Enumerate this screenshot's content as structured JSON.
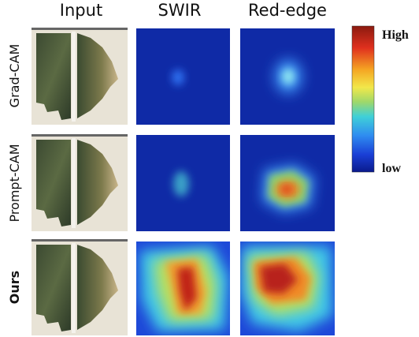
{
  "columns": [
    "Input",
    "SWIR",
    "Red-edge"
  ],
  "rows": [
    "Grad-CAM",
    "Prompt-CAM",
    "Ours"
  ],
  "colorbar": {
    "high": "High",
    "low": "low"
  }
}
